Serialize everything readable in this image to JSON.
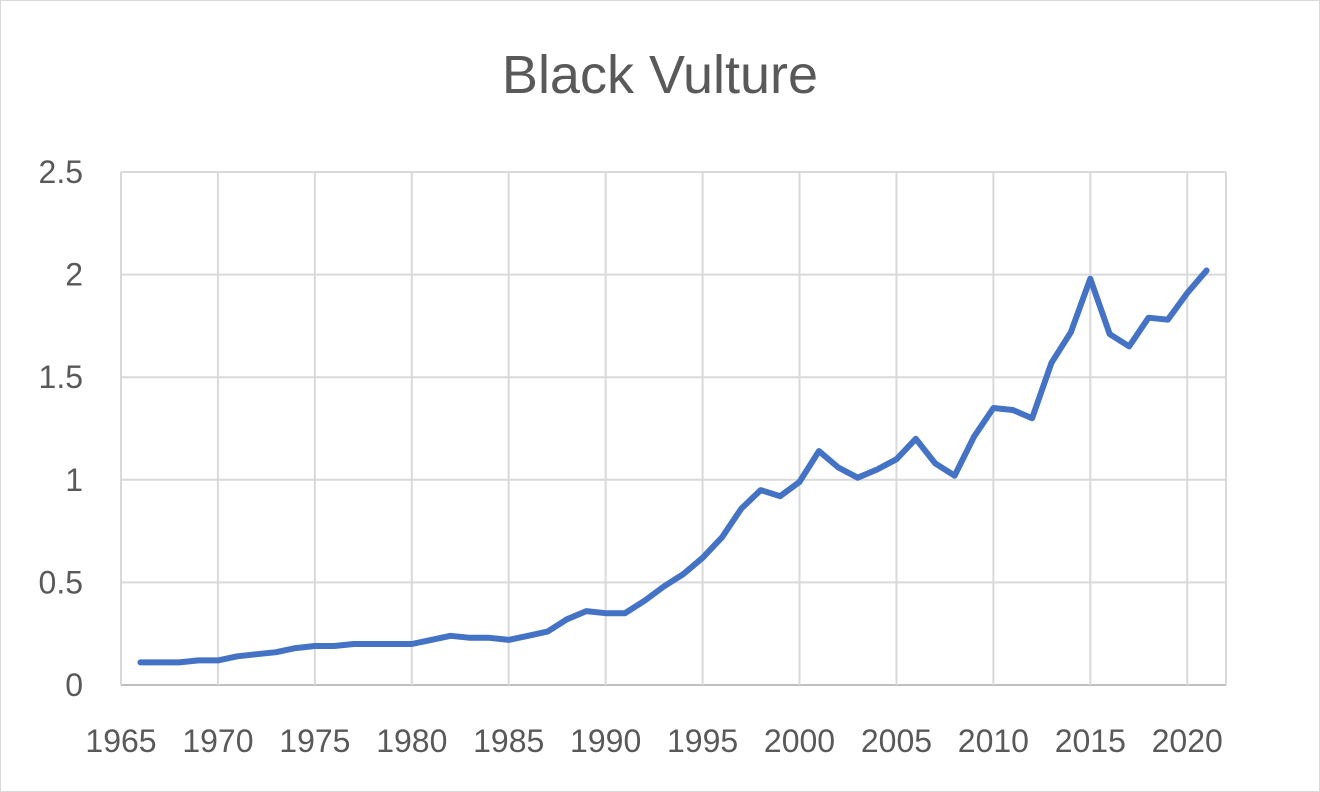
{
  "chart_data": {
    "type": "line",
    "title": "Black Vulture",
    "xlabel": "",
    "ylabel": "",
    "xlim": [
      1965,
      2021
    ],
    "ylim": [
      0,
      2.5
    ],
    "x_ticks": [
      "1965",
      "1970",
      "1975",
      "1980",
      "1985",
      "1990",
      "1995",
      "2000",
      "2005",
      "2010",
      "2015",
      "2020"
    ],
    "y_ticks": [
      "0",
      "0.5",
      "1",
      "1.5",
      "2",
      "2.5"
    ],
    "grid": true,
    "legend": "none",
    "series": [
      {
        "color": "#4472C4",
        "x": [
          1966,
          1967,
          1968,
          1969,
          1970,
          1971,
          1972,
          1973,
          1974,
          1975,
          1976,
          1977,
          1978,
          1979,
          1980,
          1981,
          1982,
          1983,
          1984,
          1985,
          1986,
          1987,
          1988,
          1989,
          1990,
          1991,
          1992,
          1993,
          1994,
          1995,
          1996,
          1997,
          1998,
          1999,
          2000,
          2001,
          2002,
          2003,
          2004,
          2005,
          2006,
          2007,
          2008,
          2009,
          2010,
          2011,
          2012,
          2013,
          2014,
          2015,
          2016,
          2017,
          2018,
          2019,
          2020,
          2021
        ],
        "values": [
          0.11,
          0.11,
          0.11,
          0.12,
          0.12,
          0.14,
          0.15,
          0.16,
          0.18,
          0.19,
          0.19,
          0.2,
          0.2,
          0.2,
          0.2,
          0.22,
          0.24,
          0.23,
          0.23,
          0.22,
          0.24,
          0.26,
          0.32,
          0.36,
          0.35,
          0.35,
          0.41,
          0.48,
          0.54,
          0.62,
          0.72,
          0.86,
          0.95,
          0.92,
          0.99,
          1.14,
          1.06,
          1.01,
          1.05,
          1.1,
          1.2,
          1.08,
          1.02,
          1.21,
          1.35,
          1.34,
          1.3,
          1.57,
          1.72,
          1.98,
          1.71,
          1.65,
          1.79,
          1.78,
          1.91,
          2.02
        ]
      }
    ]
  }
}
